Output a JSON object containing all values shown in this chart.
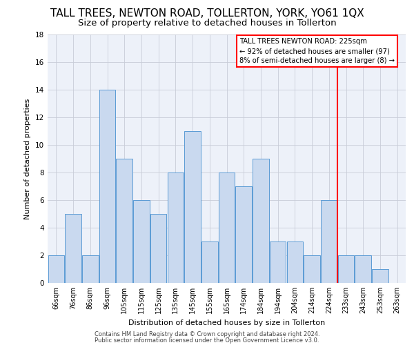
{
  "title": "TALL TREES, NEWTON ROAD, TOLLERTON, YORK, YO61 1QX",
  "subtitle": "Size of property relative to detached houses in Tollerton",
  "xlabel": "Distribution of detached houses by size in Tollerton",
  "ylabel": "Number of detached properties",
  "bar_labels": [
    "66sqm",
    "76sqm",
    "86sqm",
    "96sqm",
    "105sqm",
    "115sqm",
    "125sqm",
    "135sqm",
    "145sqm",
    "155sqm",
    "165sqm",
    "174sqm",
    "184sqm",
    "194sqm",
    "204sqm",
    "214sqm",
    "224sqm",
    "233sqm",
    "243sqm",
    "253sqm",
    "263sqm"
  ],
  "bar_values": [
    2,
    5,
    2,
    14,
    9,
    6,
    5,
    8,
    11,
    3,
    8,
    7,
    9,
    3,
    3,
    2,
    6,
    2,
    2,
    1,
    0
  ],
  "bar_color": "#c9d9ef",
  "bar_edge_color": "#5b9bd5",
  "ylim": [
    0,
    18
  ],
  "yticks": [
    0,
    2,
    4,
    6,
    8,
    10,
    12,
    14,
    16,
    18
  ],
  "red_line_x": 16.5,
  "annotation_title": "TALL TREES NEWTON ROAD: 225sqm",
  "annotation_line1": "← 92% of detached houses are smaller (97)",
  "annotation_line2": "8% of semi-detached houses are larger (8) →",
  "footer_line1": "Contains HM Land Registry data © Crown copyright and database right 2024.",
  "footer_line2": "Public sector information licensed under the Open Government Licence v3.0.",
  "background_color": "#edf1f9",
  "grid_color": "#c8cdd8",
  "title_fontsize": 11,
  "subtitle_fontsize": 9.5
}
